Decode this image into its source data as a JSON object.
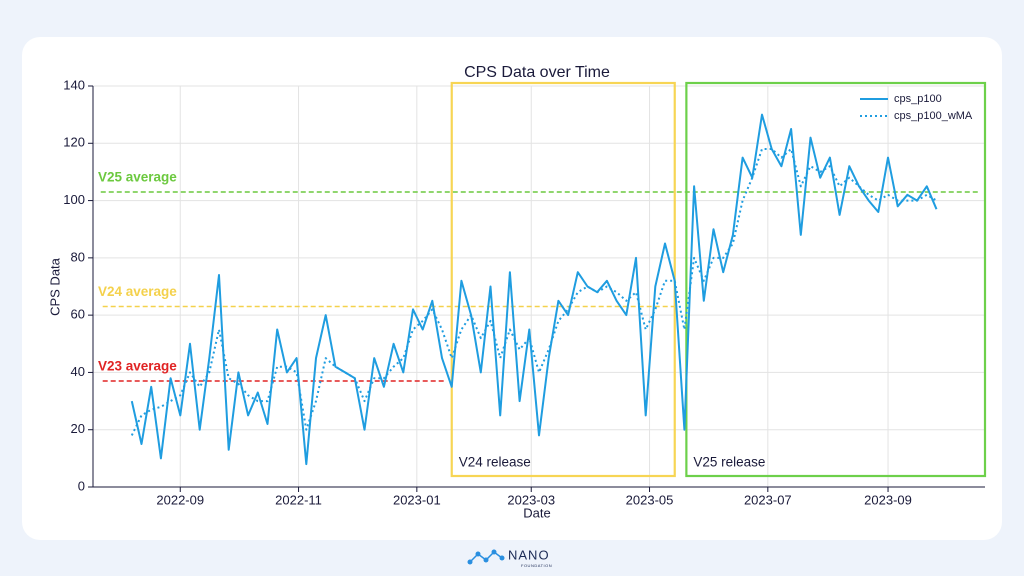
{
  "chart_data": {
    "type": "line",
    "title": "CPS Data over Time",
    "xlabel": "Date",
    "ylabel": "CPS Data",
    "xlim": [
      "2022-07-18",
      "2023-10-21"
    ],
    "xticks": [
      "2022-09",
      "2022-11",
      "2023-01",
      "2023-03",
      "2023-05",
      "2023-07",
      "2023-09"
    ],
    "ylim": [
      0,
      140
    ],
    "yticks": [
      0,
      20,
      40,
      60,
      80,
      100,
      120,
      140
    ],
    "grid": true,
    "legend": "upper right",
    "x": [
      "2022-08-07",
      "2022-08-12",
      "2022-08-17",
      "2022-08-22",
      "2022-08-27",
      "2022-09-01",
      "2022-09-06",
      "2022-09-11",
      "2022-09-16",
      "2022-09-21",
      "2022-09-26",
      "2022-10-01",
      "2022-10-06",
      "2022-10-11",
      "2022-10-16",
      "2022-10-21",
      "2022-10-26",
      "2022-10-31",
      "2022-11-05",
      "2022-11-10",
      "2022-11-15",
      "2022-11-20",
      "2022-11-25",
      "2022-11-30",
      "2022-12-05",
      "2022-12-10",
      "2022-12-15",
      "2022-12-20",
      "2022-12-25",
      "2022-12-30",
      "2023-01-04",
      "2023-01-09",
      "2023-01-14",
      "2023-01-19",
      "2023-01-24",
      "2023-01-29",
      "2023-02-03",
      "2023-02-08",
      "2023-02-13",
      "2023-02-18",
      "2023-02-23",
      "2023-02-28",
      "2023-03-05",
      "2023-03-10",
      "2023-03-15",
      "2023-03-20",
      "2023-03-25",
      "2023-03-30",
      "2023-04-04",
      "2023-04-09",
      "2023-04-14",
      "2023-04-19",
      "2023-04-24",
      "2023-04-29",
      "2023-05-04",
      "2023-05-09",
      "2023-05-14",
      "2023-05-19",
      "2023-05-24",
      "2023-05-29",
      "2023-06-03",
      "2023-06-08",
      "2023-06-13",
      "2023-06-18",
      "2023-06-23",
      "2023-06-28",
      "2023-07-03",
      "2023-07-08",
      "2023-07-13",
      "2023-07-18",
      "2023-07-23",
      "2023-07-28",
      "2023-08-02",
      "2023-08-07",
      "2023-08-12",
      "2023-08-17",
      "2023-08-22",
      "2023-08-27",
      "2023-09-01",
      "2023-09-06",
      "2023-09-11",
      "2023-09-16",
      "2023-09-21",
      "2023-09-26"
    ],
    "series": [
      {
        "name": "cps_p100",
        "color": "#1f9de0",
        "style": "solid",
        "values": [
          30,
          15,
          35,
          10,
          38,
          25,
          50,
          20,
          45,
          74,
          13,
          40,
          25,
          33,
          22,
          55,
          40,
          45,
          8,
          45,
          60,
          42,
          40,
          38,
          20,
          45,
          35,
          50,
          40,
          62,
          55,
          65,
          45,
          35,
          72,
          60,
          40,
          70,
          25,
          75,
          30,
          55,
          18,
          45,
          65,
          60,
          75,
          70,
          68,
          72,
          65,
          60,
          80,
          25,
          70,
          85,
          72,
          20,
          105,
          65,
          90,
          75,
          88,
          115,
          108,
          130,
          118,
          112,
          125,
          88,
          122,
          108,
          115,
          95,
          112,
          105,
          100,
          96,
          115,
          98,
          102,
          100,
          105,
          97
        ]
      },
      {
        "name": "cps_p100_wMA",
        "color": "#1f9de0",
        "style": "dotted",
        "values": [
          18,
          25,
          27,
          28,
          30,
          32,
          40,
          35,
          40,
          55,
          38,
          36,
          32,
          30,
          30,
          42,
          42,
          40,
          20,
          30,
          45,
          42,
          40,
          38,
          30,
          38,
          38,
          42,
          45,
          55,
          58,
          62,
          55,
          45,
          55,
          60,
          52,
          58,
          45,
          55,
          48,
          52,
          40,
          48,
          58,
          62,
          68,
          70,
          68,
          70,
          68,
          65,
          68,
          55,
          62,
          72,
          72,
          55,
          80,
          72,
          80,
          80,
          85,
          100,
          108,
          118,
          118,
          115,
          118,
          105,
          112,
          110,
          112,
          105,
          108,
          105,
          102,
          100,
          102,
          100,
          100,
          100,
          102,
          100
        ]
      }
    ],
    "reference_lines": [
      {
        "label": "V23 average",
        "value": 37,
        "color": "#e02424",
        "start": "2022-07-23",
        "end": "2023-01-16"
      },
      {
        "label": "V24 average",
        "value": 63,
        "color": "#f4d14c",
        "start": "2022-07-23",
        "end": "2023-05-15"
      },
      {
        "label": "V25 average",
        "value": 103,
        "color": "#6cc93f",
        "start": "2022-07-22",
        "end": "2023-10-18"
      }
    ],
    "regions": [
      {
        "label": "V24 release",
        "color": "#f7d554",
        "start": "2023-01-19",
        "end": "2023-05-14"
      },
      {
        "label": "V25 release",
        "color": "#6dd04a",
        "start": "2023-05-20",
        "end": "2023-10-21"
      }
    ]
  },
  "footer": {
    "name": "NANO",
    "sub": "FOUNDATION"
  }
}
